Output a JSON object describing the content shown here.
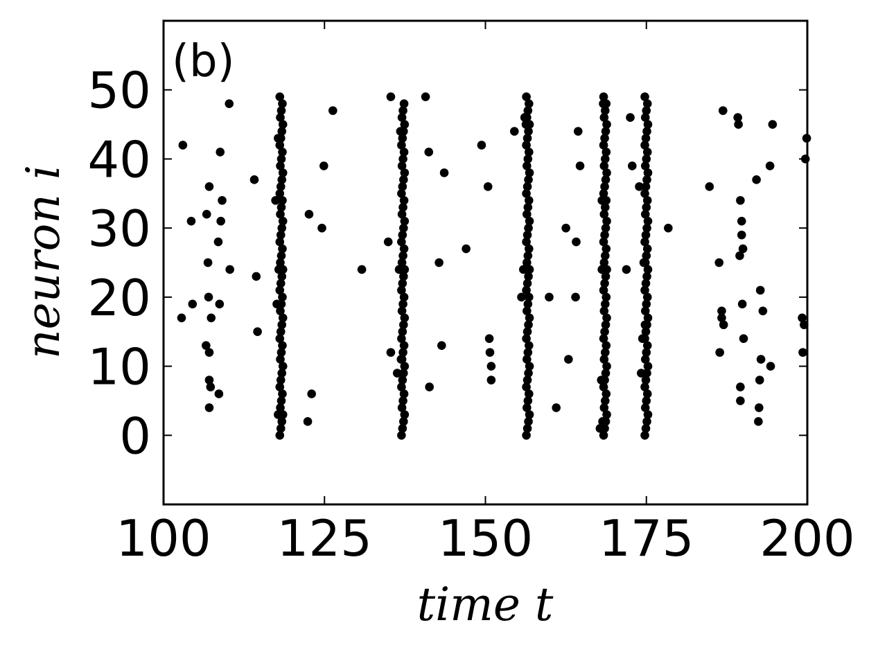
{
  "chart_data": {
    "type": "scatter",
    "panel_label": "(b)",
    "xlabel": "time t",
    "ylabel": "neuron i",
    "xlim": [
      100,
      200
    ],
    "ylim": [
      -10,
      60
    ],
    "x_ticks": [
      100,
      125,
      150,
      175,
      200
    ],
    "y_ticks": [
      0,
      10,
      20,
      30,
      40,
      50
    ],
    "grid": false,
    "marker_color": "#000000",
    "bursts": [
      {
        "t": 118.3,
        "neurons": [
          0,
          1,
          2,
          3,
          4,
          5,
          6,
          7,
          8,
          9,
          10,
          11,
          12,
          13,
          14,
          15,
          16,
          17,
          18,
          19,
          20,
          21,
          22,
          23,
          24,
          25,
          26,
          27,
          28,
          29,
          30,
          31,
          32,
          33,
          34,
          35,
          36,
          37,
          38,
          39,
          40,
          41,
          42,
          43,
          44,
          45,
          46,
          47,
          48,
          49
        ]
      },
      {
        "t": 137.2,
        "neurons": [
          0,
          1,
          2,
          3,
          4,
          5,
          6,
          7,
          8,
          9,
          10,
          11,
          12,
          13,
          14,
          15,
          16,
          17,
          18,
          19,
          20,
          21,
          22,
          23,
          24,
          25,
          26,
          27,
          28,
          29,
          30,
          31,
          32,
          33,
          34,
          35,
          36,
          37,
          38,
          39,
          40,
          41,
          42,
          43,
          44,
          45,
          46,
          47,
          48
        ]
      },
      {
        "t": 156.6,
        "neurons": [
          0,
          1,
          2,
          3,
          4,
          5,
          6,
          7,
          8,
          9,
          10,
          11,
          12,
          13,
          14,
          15,
          16,
          17,
          18,
          19,
          20,
          21,
          22,
          23,
          24,
          25,
          26,
          27,
          28,
          29,
          30,
          31,
          32,
          33,
          34,
          35,
          36,
          37,
          38,
          39,
          40,
          41,
          42,
          43,
          44,
          45,
          46,
          47,
          48,
          49
        ]
      },
      {
        "t": 168.6,
        "neurons": [
          0,
          1,
          2,
          3,
          4,
          5,
          6,
          7,
          8,
          9,
          10,
          11,
          12,
          13,
          14,
          15,
          16,
          17,
          18,
          19,
          20,
          21,
          22,
          23,
          24,
          25,
          26,
          27,
          28,
          29,
          30,
          31,
          32,
          33,
          34,
          35,
          36,
          37,
          38,
          39,
          40,
          41,
          42,
          43,
          44,
          45,
          46,
          47,
          48,
          49
        ]
      },
      {
        "t": 175.0,
        "neurons": [
          0,
          1,
          2,
          3,
          4,
          5,
          6,
          7,
          8,
          9,
          10,
          11,
          12,
          13,
          14,
          15,
          16,
          17,
          18,
          19,
          20,
          21,
          22,
          23,
          24,
          25,
          26,
          27,
          28,
          29,
          30,
          31,
          32,
          33,
          34,
          35,
          36,
          37,
          38,
          39,
          40,
          41,
          42,
          43,
          44,
          45,
          46,
          47,
          48,
          49
        ]
      }
    ],
    "points": [
      [
        102.8,
        17
      ],
      [
        103.0,
        42
      ],
      [
        104.3,
        31
      ],
      [
        104.5,
        19
      ],
      [
        106.6,
        13
      ],
      [
        106.7,
        32
      ],
      [
        106.9,
        25
      ],
      [
        107.0,
        20
      ],
      [
        107.1,
        36
      ],
      [
        107.1,
        12
      ],
      [
        107.1,
        8
      ],
      [
        107.1,
        4
      ],
      [
        107.3,
        7
      ],
      [
        107.4,
        17
      ],
      [
        108.5,
        28
      ],
      [
        108.6,
        6
      ],
      [
        108.7,
        19
      ],
      [
        108.8,
        41
      ],
      [
        108.9,
        31
      ],
      [
        109.1,
        34
      ],
      [
        110.2,
        48
      ],
      [
        110.3,
        24
      ],
      [
        114.1,
        37
      ],
      [
        114.4,
        23
      ],
      [
        114.6,
        15
      ],
      [
        117.4,
        34
      ],
      [
        117.6,
        19
      ],
      [
        117.8,
        3
      ],
      [
        117.8,
        43
      ],
      [
        117.9,
        24
      ],
      [
        122.4,
        2
      ],
      [
        122.6,
        32
      ],
      [
        123.0,
        6
      ],
      [
        124.6,
        30
      ],
      [
        124.9,
        39
      ],
      [
        126.3,
        47
      ],
      [
        130.8,
        24
      ],
      [
        134.9,
        28
      ],
      [
        135.3,
        49
      ],
      [
        135.3,
        12
      ],
      [
        136.3,
        9
      ],
      [
        136.6,
        24
      ],
      [
        136.8,
        44
      ],
      [
        136.9,
        11
      ],
      [
        140.7,
        49
      ],
      [
        141.2,
        41
      ],
      [
        141.3,
        7
      ],
      [
        142.8,
        25
      ],
      [
        143.2,
        13
      ],
      [
        143.6,
        38
      ],
      [
        147.0,
        27
      ],
      [
        149.4,
        42
      ],
      [
        150.4,
        36
      ],
      [
        150.6,
        14
      ],
      [
        150.7,
        12
      ],
      [
        150.9,
        10
      ],
      [
        150.9,
        8
      ],
      [
        154.5,
        44
      ],
      [
        155.6,
        20
      ],
      [
        155.9,
        24
      ],
      [
        156.1,
        46
      ],
      [
        156.3,
        45
      ],
      [
        159.9,
        20
      ],
      [
        161.0,
        4
      ],
      [
        162.5,
        30
      ],
      [
        162.9,
        11
      ],
      [
        164.0,
        20
      ],
      [
        164.1,
        28
      ],
      [
        164.4,
        44
      ],
      [
        164.7,
        39
      ],
      [
        167.8,
        1
      ],
      [
        168.0,
        8
      ],
      [
        168.1,
        24
      ],
      [
        168.1,
        34
      ],
      [
        168.2,
        2
      ],
      [
        168.3,
        48
      ],
      [
        171.9,
        24
      ],
      [
        172.5,
        46
      ],
      [
        172.8,
        39
      ],
      [
        173.9,
        36
      ],
      [
        174.2,
        9
      ],
      [
        174.4,
        14
      ],
      [
        174.6,
        25
      ],
      [
        174.8,
        16
      ],
      [
        178.4,
        30
      ],
      [
        184.8,
        36
      ],
      [
        186.3,
        25
      ],
      [
        186.4,
        12
      ],
      [
        186.7,
        17
      ],
      [
        186.7,
        18
      ],
      [
        186.9,
        47
      ],
      [
        187.0,
        16
      ],
      [
        189.2,
        46
      ],
      [
        189.3,
        45
      ],
      [
        189.5,
        26
      ],
      [
        189.6,
        34
      ],
      [
        189.6,
        7
      ],
      [
        189.6,
        5
      ],
      [
        189.8,
        31
      ],
      [
        189.8,
        29
      ],
      [
        189.9,
        19
      ],
      [
        190.0,
        27
      ],
      [
        190.1,
        14
      ],
      [
        192.1,
        37
      ],
      [
        192.4,
        2
      ],
      [
        192.5,
        4
      ],
      [
        192.6,
        8
      ],
      [
        192.7,
        21
      ],
      [
        192.8,
        11
      ],
      [
        193.1,
        18
      ],
      [
        194.2,
        39
      ],
      [
        194.3,
        10
      ],
      [
        194.6,
        45
      ],
      [
        199.2,
        17
      ],
      [
        199.3,
        12
      ],
      [
        199.5,
        16
      ],
      [
        199.7,
        40
      ],
      [
        199.9,
        43
      ]
    ]
  }
}
